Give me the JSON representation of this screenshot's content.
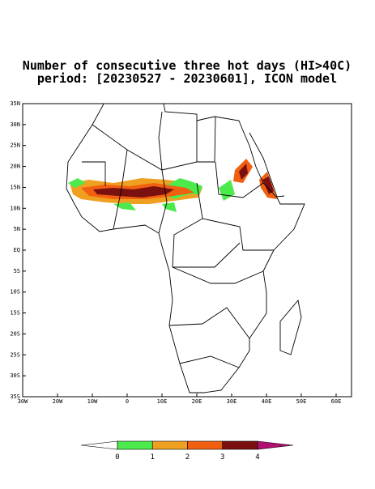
{
  "header": {
    "title": "Number of consecutive three hot days (HI>40C)",
    "subtitle": "period: [20230527 - 20230601], ICON model"
  },
  "map": {
    "lat_labels": [
      "35N",
      "30N",
      "25N",
      "20N",
      "15N",
      "10N",
      "5N",
      "EQ",
      "5S",
      "10S",
      "15S",
      "20S",
      "25S",
      "30S",
      "35S"
    ],
    "lon_labels": [
      "30W",
      "20W",
      "10W",
      "0",
      "10E",
      "20E",
      "30E",
      "40E",
      "50E",
      "60E"
    ]
  },
  "colorbar": {
    "labels": [
      "0",
      "1",
      "2",
      "3",
      "4"
    ],
    "colors": [
      "#ffffff",
      "#4cea4c",
      "#f0a020",
      "#f06010",
      "#7a1010",
      "#b01070"
    ]
  }
}
